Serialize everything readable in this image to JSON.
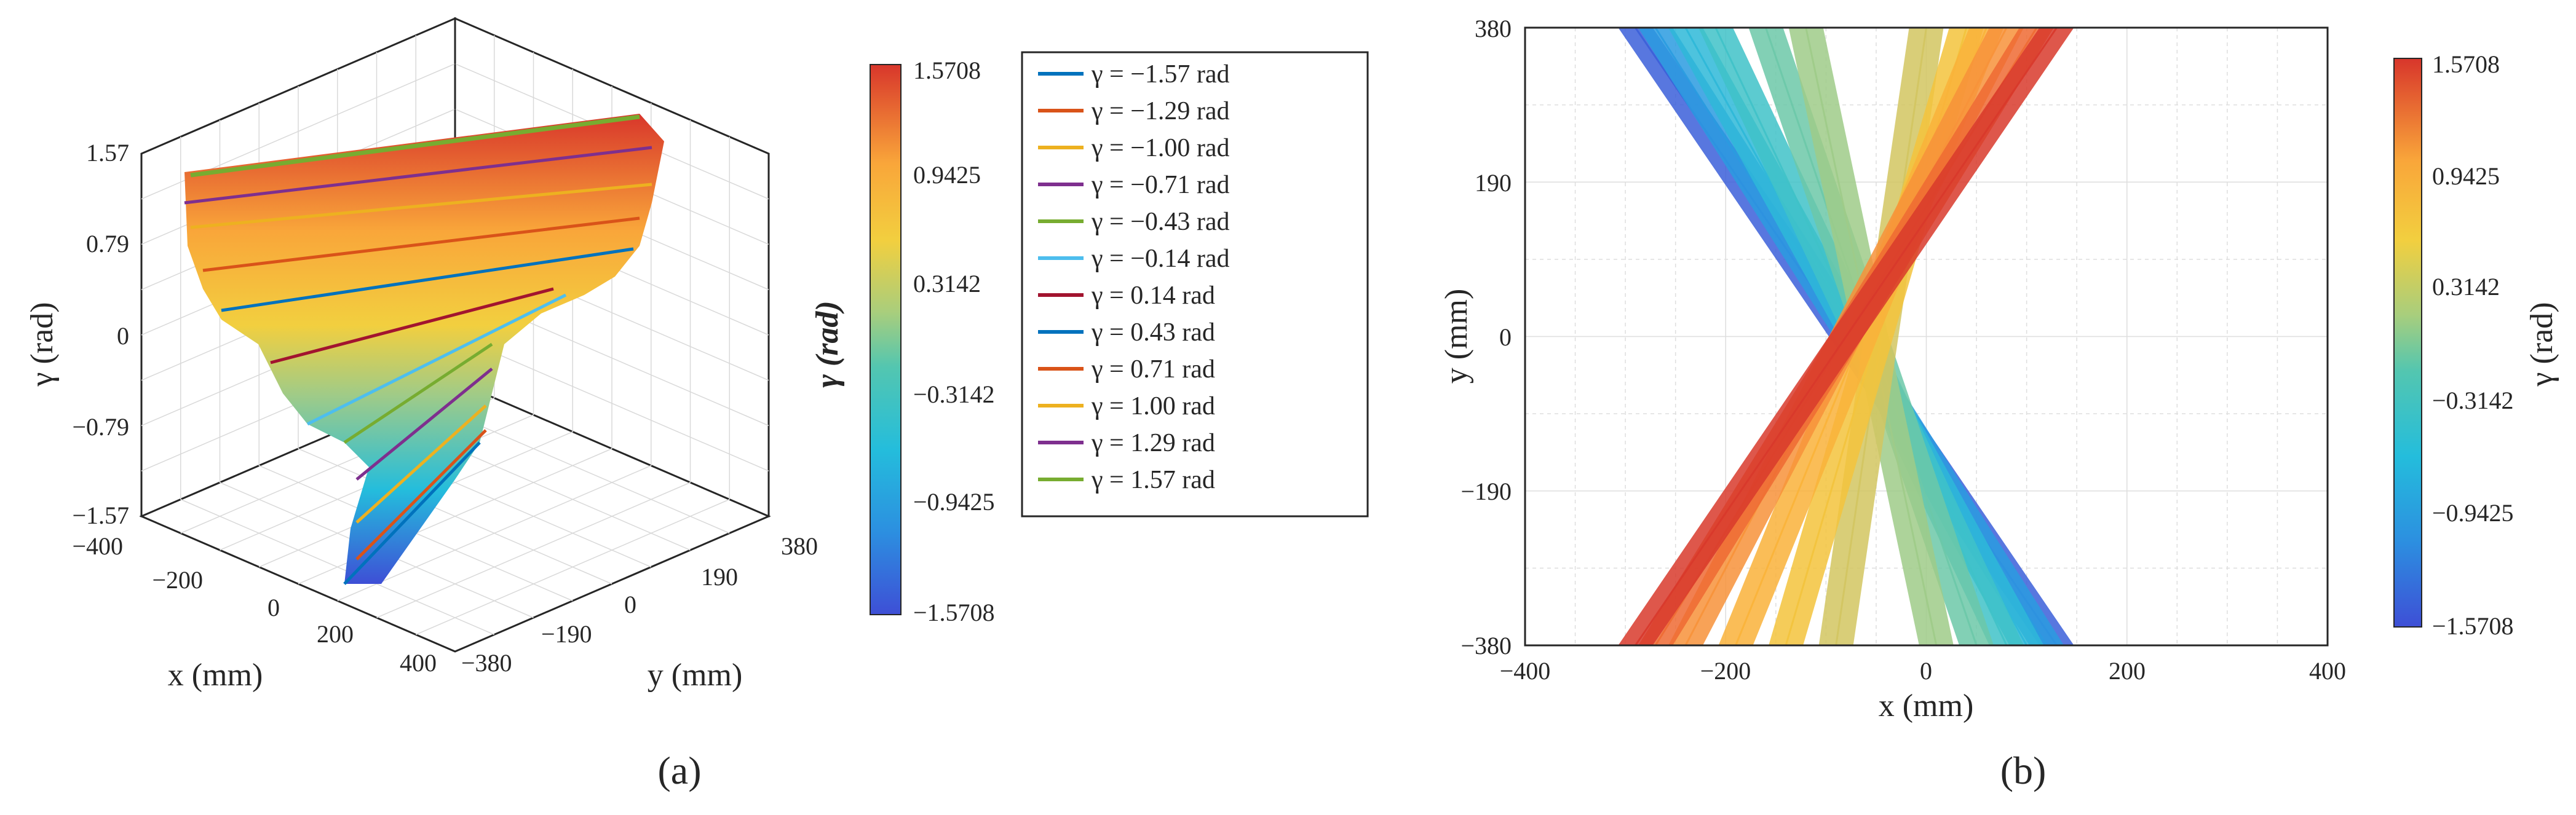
{
  "figure_label_a": "(a)",
  "figure_label_b": "(b)",
  "chart_data": [
    {
      "type": "surface3d",
      "panel": "a",
      "xlabel": "x (mm)",
      "ylabel": "y (mm)",
      "zlabel": "γ (rad)",
      "xticks": [
        "−400",
        "−200",
        "0",
        "200",
        "400"
      ],
      "yticks": [
        "380",
        "190",
        "0",
        "−190",
        "−380"
      ],
      "zticks": [
        "1.57",
        "0.79",
        "0",
        "−0.79",
        "−1.57"
      ],
      "xlim": [
        -400,
        400
      ],
      "ylim": [
        -380,
        380
      ],
      "zlim": [
        -1.57,
        1.57
      ],
      "grid": true,
      "colorbar": {
        "label": "γ (rad)",
        "ticks": [
          "1.5708",
          "0.9425",
          "0.3142",
          "−0.3142",
          "−0.9425",
          "−1.5708"
        ],
        "range": [
          -1.5708,
          1.5708
        ]
      },
      "legend": {
        "placement": "right",
        "entries": [
          {
            "name": "γ = −1.57 rad",
            "color": "#0072BD"
          },
          {
            "name": "γ = −1.29 rad",
            "color": "#D95319"
          },
          {
            "name": "γ = −1.00 rad",
            "color": "#EDB120"
          },
          {
            "name": "γ = −0.71 rad",
            "color": "#7E2F8E"
          },
          {
            "name": "γ = −0.43 rad",
            "color": "#77AC30"
          },
          {
            "name": "γ = −0.14 rad",
            "color": "#4DBEEE"
          },
          {
            "name": "γ = 0.14 rad",
            "color": "#A2142F"
          },
          {
            "name": "γ = 0.43 rad",
            "color": "#0072BD"
          },
          {
            "name": "γ = 0.71 rad",
            "color": "#D95319"
          },
          {
            "name": "γ = 1.00 rad",
            "color": "#EDB120"
          },
          {
            "name": "γ = 1.29 rad",
            "color": "#7E2F8E"
          },
          {
            "name": "γ = 1.57 rad",
            "color": "#77AC30"
          }
        ]
      },
      "series_gamma": [
        -1.57,
        -1.29,
        -1.0,
        -0.71,
        -0.43,
        -0.14,
        0.14,
        0.43,
        0.71,
        1.0,
        1.29,
        1.57
      ]
    },
    {
      "type": "area",
      "panel": "b",
      "xlabel": "x (mm)",
      "ylabel": "y (mm)",
      "xticks": [
        "−400",
        "−200",
        "0",
        "200",
        "400"
      ],
      "yticks": [
        "380",
        "190",
        "0",
        "−190",
        "−380"
      ],
      "xlim": [
        -400,
        400
      ],
      "ylim": [
        -380,
        380
      ],
      "grid": true,
      "colorbar": {
        "label": "γ (rad)",
        "ticks": [
          "1.5708",
          "0.9425",
          "0.3142",
          "−0.3142",
          "−0.9425",
          "−1.5708"
        ],
        "range": [
          -1.5708,
          1.5708
        ]
      },
      "bands": [
        {
          "gamma": -1.57,
          "top_x": -290,
          "bottom_x": 130,
          "color": "#3B5FD9"
        },
        {
          "gamma": -1.29,
          "top_x": -270,
          "bottom_x": 120,
          "color": "#2A9BE0"
        },
        {
          "gamma": -1.0,
          "top_x": -240,
          "bottom_x": 100,
          "color": "#2EB8D8"
        },
        {
          "gamma": -0.71,
          "top_x": -210,
          "bottom_x": 80,
          "color": "#3FC2C8"
        },
        {
          "gamma": -0.43,
          "top_x": -160,
          "bottom_x": 50,
          "color": "#6CC8A8"
        },
        {
          "gamma": -0.14,
          "top_x": -120,
          "bottom_x": 10,
          "color": "#9FCB88"
        },
        {
          "gamma": 0.14,
          "top_x": 0,
          "bottom_x": -90,
          "color": "#D2C560"
        },
        {
          "gamma": 0.43,
          "top_x": 40,
          "bottom_x": -140,
          "color": "#F3C33C"
        },
        {
          "gamma": 0.71,
          "top_x": 60,
          "bottom_x": -190,
          "color": "#F9B23A"
        },
        {
          "gamma": 1.0,
          "top_x": 80,
          "bottom_x": -240,
          "color": "#F7923A"
        },
        {
          "gamma": 1.29,
          "top_x": 110,
          "bottom_x": -270,
          "color": "#EE6A33"
        },
        {
          "gamma": 1.57,
          "top_x": 130,
          "bottom_x": -290,
          "color": "#D8392B"
        }
      ]
    }
  ]
}
